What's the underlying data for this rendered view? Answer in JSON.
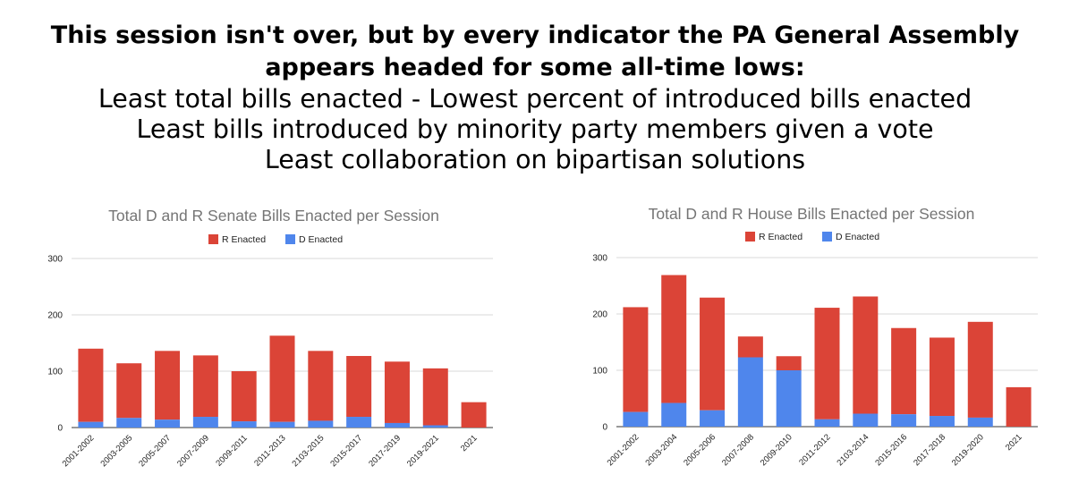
{
  "headline": {
    "title_line1": "This session isn't over, but by every indicator the PA General Assembly",
    "title_line2": "appears headed for some all-time lows:",
    "points": [
      "Least total bills enacted - Lowest percent of introduced bills enacted",
      "Least bills introduced by minority party members given a vote",
      "Least collaboration on bipartisan solutions"
    ]
  },
  "colors": {
    "r_enacted": "#db4437",
    "d_enacted": "#4f86ec",
    "grid": "#d9d9d9",
    "title": "#757575"
  },
  "chart_data": [
    {
      "type": "bar",
      "stacked": true,
      "title": "Total D and R Senate Bills Enacted per Session",
      "categories": [
        "2001-2002",
        "2003-2005",
        "2005-2007",
        "2007-2009",
        "2009-2011",
        "2011-2013",
        "2103-2015",
        "2015-2017",
        "2017-2019",
        "2019-2021",
        "2021"
      ],
      "series": [
        {
          "name": "D Enacted",
          "values": [
            10,
            17,
            14,
            19,
            11,
            10,
            12,
            19,
            8,
            4,
            0
          ]
        },
        {
          "name": "R Enacted",
          "values": [
            130,
            97,
            122,
            109,
            89,
            153,
            124,
            108,
            109,
            101,
            45
          ]
        }
      ],
      "legend_order": [
        "R Enacted",
        "D Enacted"
      ],
      "yticks": [
        0,
        100,
        200,
        300
      ],
      "ylim": [
        0,
        300
      ],
      "legend_position": "top",
      "grid": true
    },
    {
      "type": "bar",
      "stacked": true,
      "title": "Total D and R House Bills Enacted per Session",
      "categories": [
        "2001-2002",
        "2003-2004",
        "2005-2006",
        "2007-2008",
        "2009-2010",
        "2011-2012",
        "2103-2014",
        "2015-2016",
        "2017-2018",
        "2019-2020",
        "2021"
      ],
      "series": [
        {
          "name": "D Enacted",
          "values": [
            26,
            42,
            29,
            123,
            100,
            13,
            23,
            22,
            19,
            16,
            0
          ]
        },
        {
          "name": "R Enacted",
          "values": [
            186,
            227,
            200,
            37,
            25,
            198,
            208,
            153,
            139,
            170,
            70
          ]
        }
      ],
      "legend_order": [
        "R Enacted",
        "D Enacted"
      ],
      "yticks": [
        0,
        100,
        200,
        300
      ],
      "ylim": [
        0,
        300
      ],
      "legend_position": "top",
      "grid": true
    }
  ]
}
